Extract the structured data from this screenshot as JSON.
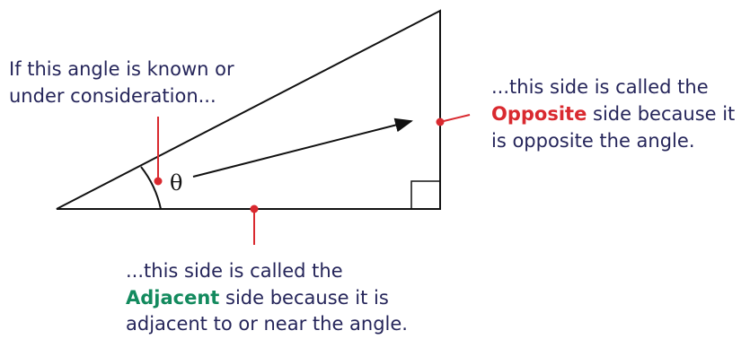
{
  "angle_label": {
    "lines": [
      "If this angle is known or",
      "under consideration..."
    ]
  },
  "theta": "θ",
  "opposite_label": {
    "line1": "...this side is called the",
    "keyword": "Opposite",
    "line2_rest": "side because it",
    "line3": "is opposite the angle."
  },
  "adjacent_label": {
    "line1": "...this side is called the",
    "keyword": "Adjacent",
    "line2_rest": "side because it is",
    "line3": "adjacent to or near the angle."
  }
}
